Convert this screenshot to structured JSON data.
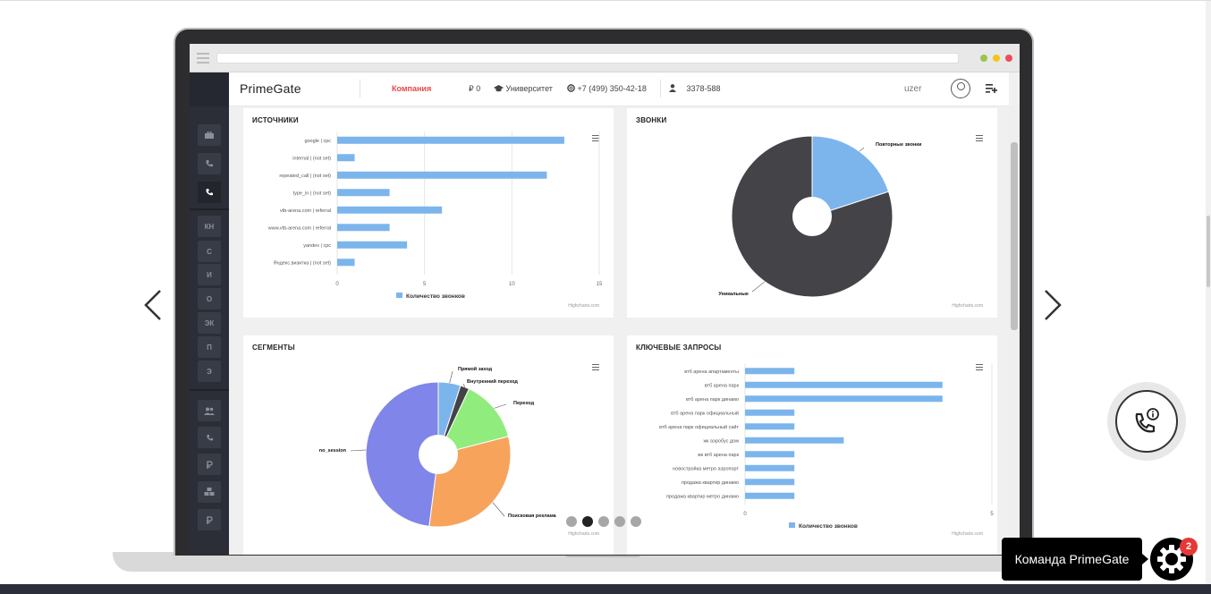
{
  "header": {
    "brand": "PrimeGate",
    "company": "Компания",
    "balance": "₽ 0",
    "university": "Университет",
    "phone": "+7 (499) 350-42-18",
    "account_id": "3378-588",
    "user": "uzer"
  },
  "sidebar": {
    "items": [
      "КН",
      "С",
      "И",
      "О",
      "ЭК",
      "П",
      "Э"
    ]
  },
  "panels": {
    "sources": {
      "title": "ИСТОЧНИКИ",
      "credit": "Highcharts.com"
    },
    "calls": {
      "title": "ЗВОНКИ",
      "credit": "Highcharts.com"
    },
    "segments": {
      "title": "СЕГМЕНТЫ",
      "credit": "Highcharts.com"
    },
    "keywords": {
      "title": "КЛЮЧЕВЫЕ ЗАПРОСЫ",
      "credit": "Highcharts.com"
    }
  },
  "chart_data": [
    {
      "type": "bar",
      "title": "ИСТОЧНИКИ",
      "categories": [
        "google | cpc",
        "internal | (not set)",
        "repeated_call | (not set)",
        "type_in | (not set)",
        "vtb-arena.com | referral",
        "www.vtb-arena.com | referral",
        "yandex | cpc",
        "Яндекс.визитка | (not set)"
      ],
      "series": [
        {
          "name": "Количество звонков",
          "values": [
            13,
            1,
            12,
            3,
            6,
            3,
            4,
            1
          ]
        }
      ],
      "xticks": [
        "0",
        "5",
        "10",
        "15"
      ],
      "xlim": [
        0,
        15
      ],
      "color": "#7cb5ec",
      "legend": "bottom"
    },
    {
      "type": "pie",
      "title": "ЗВОНКИ",
      "labels": [
        "Повторные звонки",
        "Уникальные"
      ],
      "values": [
        20,
        80
      ],
      "colors": [
        "#7cb5ec",
        "#434348"
      ]
    },
    {
      "type": "pie",
      "title": "СЕГМЕНТЫ",
      "labels": [
        "Прямой заход",
        "Внутренний переход",
        "Переход",
        "Поисковая реклама",
        "no_session"
      ],
      "values": [
        5,
        2,
        14,
        31,
        48
      ],
      "colors": [
        "#7cb5ec",
        "#434348",
        "#90ed7d",
        "#f7a35c",
        "#8085e9"
      ]
    },
    {
      "type": "bar",
      "title": "КЛЮЧЕВЫЕ ЗАПРОСЫ",
      "categories": [
        "втб арена апартаменты",
        "втб арена парк",
        "втб арена парк динамо",
        "втб арена парк официальный",
        "втб арена парк официальный сайт",
        "жк аэробус дом",
        "жк втб арена парк",
        "новостройка метро аэропорт",
        "продажа квартир динамо",
        "продажа квартир метро динамо"
      ],
      "series": [
        {
          "name": "Количество звонков",
          "values": [
            1,
            4,
            4,
            1,
            1,
            2,
            1,
            1,
            1,
            1
          ]
        }
      ],
      "xticks": [
        "0",
        "5"
      ],
      "xlim": [
        0,
        5
      ],
      "color": "#7cb5ec",
      "legend": "bottom"
    }
  ],
  "widgets": {
    "team_label": "Команда PrimeGate",
    "badge_count": "2"
  }
}
